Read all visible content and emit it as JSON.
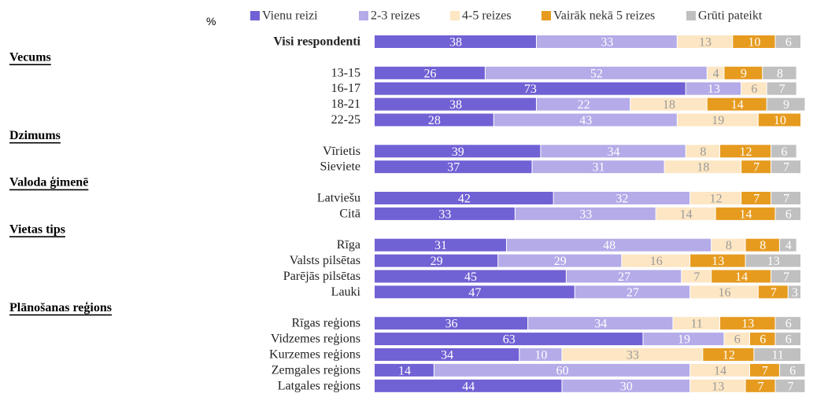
{
  "chart_data": {
    "type": "stacked-bar-horizontal",
    "unit": "%",
    "categories": [
      "Visi respondenti",
      "Vecums",
      "13-15",
      "16-17",
      "18-21",
      "22-25",
      "Dzimums",
      "Vīrietis",
      "Sieviete",
      "Valoda ģimenē",
      "Latviešu",
      "Citā",
      "Vietas tips",
      "Rīga",
      "Valsts pilsētas",
      "Parējās pilsētas",
      "Lauki",
      "Plānošanas reģions",
      "Rīgas reģions",
      "Vidzemes reģions",
      "Kurzemes reģions",
      "Zemgales reģions",
      "Latgales reģions"
    ],
    "series": [
      {
        "name": "Vienu reizi",
        "color": "#7061d4",
        "values": [
          38,
          null,
          26,
          73,
          38,
          28,
          null,
          39,
          37,
          null,
          42,
          33,
          null,
          31,
          29,
          45,
          47,
          null,
          36,
          63,
          34,
          14,
          44
        ]
      },
      {
        "name": "2-3 reizes",
        "color": "#b4abe8",
        "values": [
          33,
          null,
          52,
          13,
          22,
          43,
          null,
          34,
          31,
          null,
          32,
          33,
          null,
          48,
          29,
          27,
          27,
          null,
          34,
          19,
          10,
          60,
          30
        ]
      },
      {
        "name": "4-5 reizes",
        "color": "#fde6c3",
        "values": [
          13,
          null,
          4,
          6,
          18,
          19,
          null,
          8,
          18,
          null,
          12,
          14,
          null,
          8,
          16,
          7,
          16,
          null,
          11,
          6,
          33,
          14,
          13
        ]
      },
      {
        "name": "Vairāk nekā 5 reizes",
        "color": "#e69b1f",
        "values": [
          10,
          null,
          9,
          null,
          14,
          10,
          null,
          12,
          7,
          null,
          7,
          14,
          null,
          8,
          13,
          14,
          7,
          null,
          13,
          6,
          12,
          7,
          7
        ]
      },
      {
        "name": "Grūti pateikt",
        "color": "#c0c0c0",
        "values": [
          6,
          null,
          8,
          7,
          9,
          null,
          null,
          6,
          7,
          null,
          7,
          6,
          null,
          4,
          13,
          7,
          3,
          null,
          6,
          6,
          11,
          6,
          7
        ]
      }
    ],
    "xlim": [
      0,
      100
    ]
  }
}
